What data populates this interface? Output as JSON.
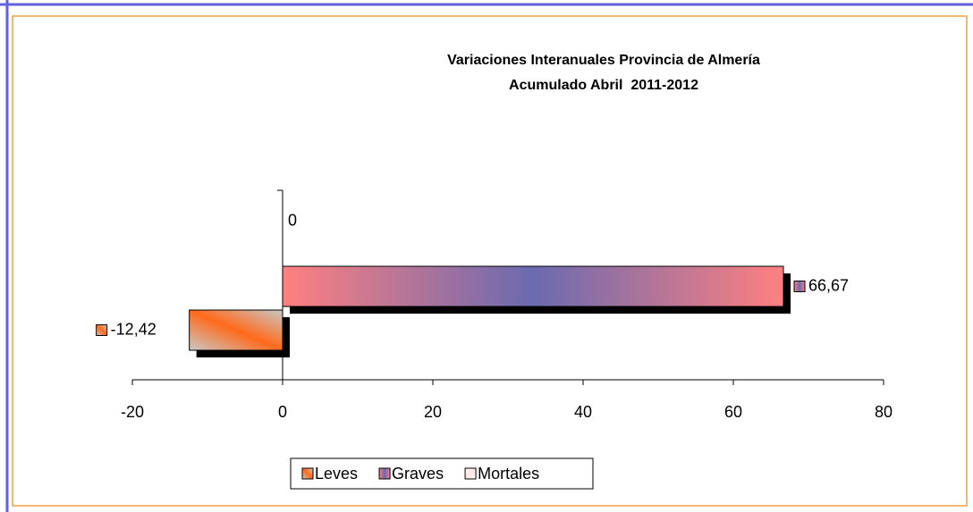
{
  "chart_data": {
    "type": "bar",
    "orientation": "horizontal",
    "title": "Variaciones Interanuales Provincia de Almería",
    "subtitle": "Acumulado Abril  2011-2012",
    "categories": [
      null
    ],
    "series": [
      {
        "name": "Leves",
        "color": "#ff6a1a",
        "values": [
          -12.42
        ],
        "value_labels": [
          "-12,42"
        ]
      },
      {
        "name": "Graves",
        "color": "#ff8080",
        "values": [
          66.67
        ],
        "value_labels": [
          "66,67"
        ]
      },
      {
        "name": "Mortales",
        "color": "#ffe4e4",
        "values": [
          0
        ],
        "value_labels": [
          "0"
        ]
      }
    ],
    "xlim": [
      -20,
      80
    ],
    "xticks": [
      -20,
      0,
      20,
      40,
      60,
      80
    ],
    "legend": "bottom"
  }
}
